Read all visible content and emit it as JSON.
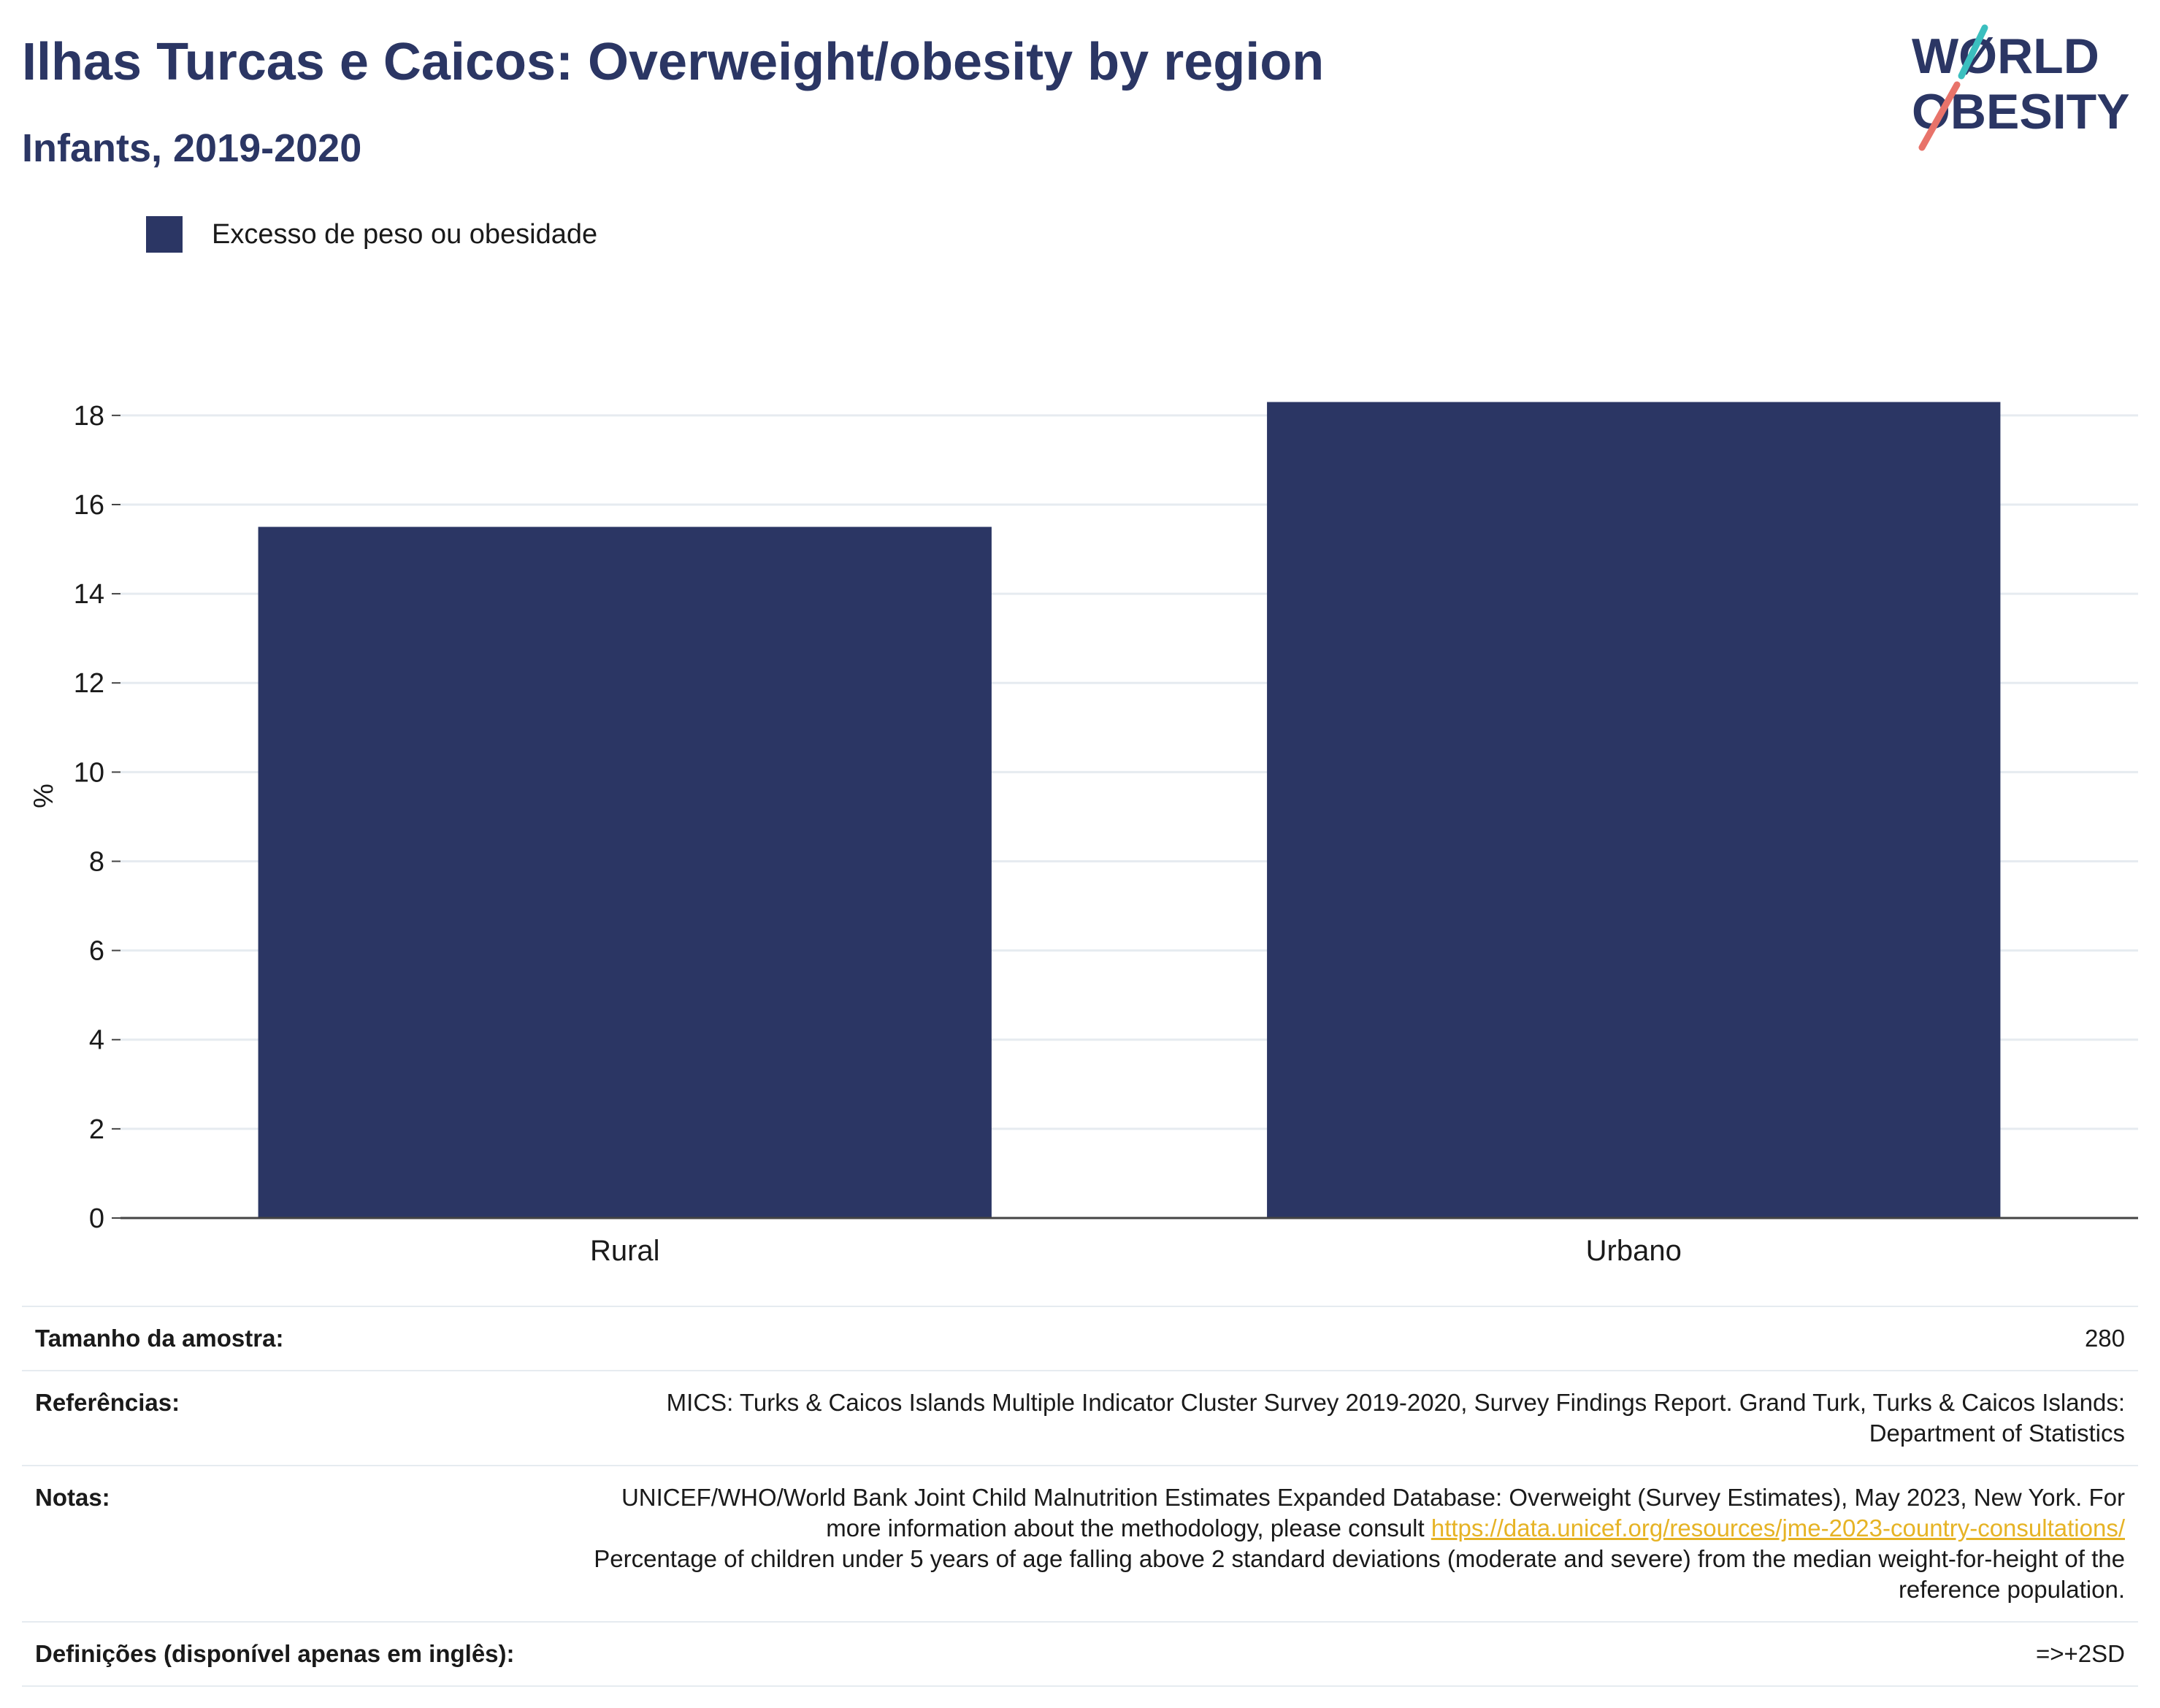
{
  "header": {
    "title": "Ilhas Turcas e Caicos: Overweight/obesity by region",
    "subtitle": "Infants, 2019-2020"
  },
  "logo": {
    "line1": "WØRLD",
    "line2": "OBESITY",
    "colors": {
      "text": "#2b3664",
      "slash_top": "#3bbfbf",
      "slash_bottom": "#e8736a"
    }
  },
  "legend": {
    "label": "Excesso de peso ou obesidade",
    "color": "#2b3664"
  },
  "chart_data": {
    "type": "bar",
    "categories": [
      "Rural",
      "Urbano"
    ],
    "series": [
      {
        "name": "Excesso de peso ou obesidade",
        "values": [
          15.5,
          18.3
        ],
        "color": "#2b3664"
      }
    ],
    "ylabel": "%",
    "xlabel": "",
    "ylim": [
      0,
      18.8
    ],
    "yticks": [
      0,
      2,
      4,
      6,
      8,
      10,
      12,
      14,
      16,
      18
    ],
    "grid": true,
    "legend_position": "top-left"
  },
  "info": {
    "sample_label": "Tamanho da amostra:",
    "sample_value": "280",
    "refs_label": "Referências:",
    "refs_value": "MICS: Turks & Caicos Islands Multiple Indicator Cluster Survey 2019-2020, Survey Findings Report. Grand Turk, Turks & Caicos Islands: Department of Statistics",
    "notes_label": "Notas:",
    "notes_text_1": "UNICEF/WHO/World Bank Joint Child Malnutrition Estimates Expanded Database: Overweight (Survey Estimates), May 2023, New York. For more information about the methodology, please consult ",
    "notes_link": "https://data.unicef.org/resources/jme-2023-country-consultations/",
    "notes_text_2": "Percentage of children under 5 years of age falling above 2 standard deviations (moderate and severe) from the median weight-for-height of the reference population.",
    "defs_label": "Definições (disponível apenas em inglês):",
    "defs_value": "=>+2SD"
  }
}
